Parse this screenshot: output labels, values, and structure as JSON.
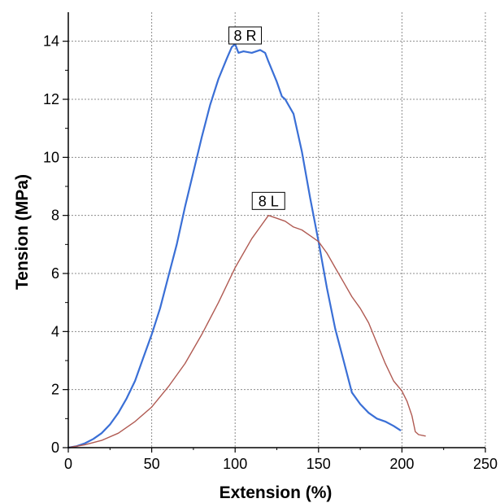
{
  "chart_data": {
    "type": "line",
    "title": "",
    "xlabel": "Extension (%)",
    "ylabel": "Tension (MPa)",
    "xlim": [
      0,
      250
    ],
    "ylim": [
      0,
      15
    ],
    "xticks": [
      "0",
      "50",
      "100",
      "150",
      "200",
      "250"
    ],
    "yticks": [
      "0",
      "2",
      "4",
      "6",
      "8",
      "10",
      "12",
      "14"
    ],
    "grid": true,
    "legend": "none",
    "series": [
      {
        "color": "#3a6fd6",
        "x": [
          0,
          5,
          10,
          15,
          20,
          25,
          30,
          35,
          40,
          45,
          50,
          55,
          60,
          65,
          70,
          75,
          80,
          85,
          90,
          95,
          98,
          100,
          102,
          105,
          110,
          115,
          118,
          120,
          125,
          128,
          130,
          135,
          140,
          145,
          150,
          155,
          160,
          165,
          170,
          175,
          180,
          185,
          190,
          195,
          199
        ],
        "y": [
          0,
          0.05,
          0.15,
          0.3,
          0.5,
          0.8,
          1.2,
          1.7,
          2.3,
          3.1,
          3.9,
          4.8,
          5.9,
          7.0,
          8.3,
          9.5,
          10.7,
          11.8,
          12.7,
          13.4,
          13.8,
          13.9,
          13.6,
          13.65,
          13.6,
          13.7,
          13.6,
          13.3,
          12.6,
          12.1,
          12.0,
          11.5,
          10.2,
          8.6,
          7.1,
          5.5,
          4.1,
          3.0,
          1.9,
          1.5,
          1.2,
          1.0,
          0.9,
          0.75,
          0.6
        ]
      },
      {
        "color": "#b05a52",
        "x": [
          0,
          10,
          20,
          30,
          40,
          50,
          60,
          70,
          80,
          90,
          100,
          110,
          115,
          120,
          125,
          130,
          135,
          140,
          145,
          150,
          155,
          160,
          165,
          170,
          175,
          180,
          185,
          190,
          195,
          200,
          203,
          206,
          208,
          210,
          214
        ],
        "y": [
          0,
          0.1,
          0.25,
          0.5,
          0.9,
          1.4,
          2.1,
          2.9,
          3.9,
          5.0,
          6.2,
          7.2,
          7.6,
          8.0,
          7.9,
          7.8,
          7.6,
          7.5,
          7.3,
          7.1,
          6.7,
          6.2,
          5.7,
          5.2,
          4.8,
          4.3,
          3.6,
          2.9,
          2.3,
          1.95,
          1.6,
          1.1,
          0.55,
          0.45,
          0.4
        ]
      }
    ],
    "annotations": [
      {
        "text": "8 R",
        "x": 106,
        "y": 14.2
      },
      {
        "text": "8 L",
        "x": 120,
        "y": 8.5
      }
    ]
  }
}
